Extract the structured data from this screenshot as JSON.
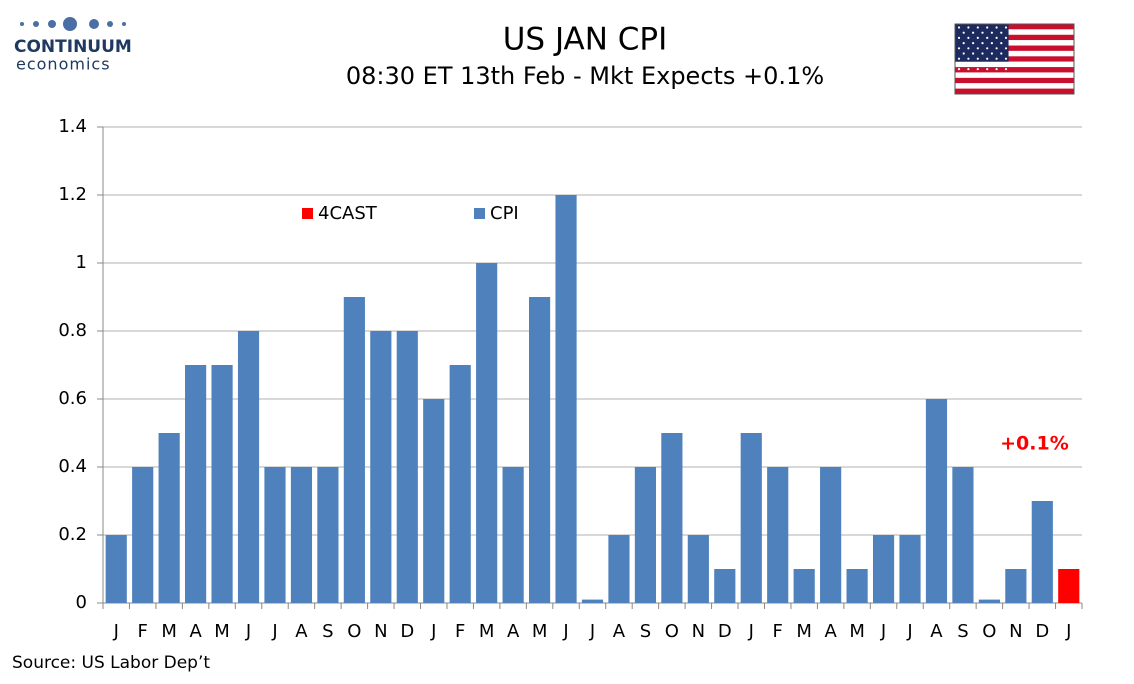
{
  "logo": {
    "name": "CONTINUUM",
    "tagline": "economics"
  },
  "chart_data": {
    "type": "bar",
    "title": "US JAN CPI",
    "subtitle": "08:30 ET 13th Feb - Mkt Expects +0.1%",
    "source": "Source: US Labor Dep’t",
    "categories": [
      "J",
      "F",
      "M",
      "A",
      "M",
      "J",
      "J",
      "A",
      "S",
      "O",
      "N",
      "D",
      "J",
      "F",
      "M",
      "A",
      "M",
      "J",
      "J",
      "A",
      "S",
      "O",
      "N",
      "D",
      "J",
      "F",
      "M",
      "A",
      "M",
      "J",
      "J",
      "A",
      "S",
      "O",
      "N",
      "D",
      "J"
    ],
    "series": [
      {
        "name": "4CAST",
        "color": "#ff0000",
        "values": [
          null,
          null,
          null,
          null,
          null,
          null,
          null,
          null,
          null,
          null,
          null,
          null,
          null,
          null,
          null,
          null,
          null,
          null,
          null,
          null,
          null,
          null,
          null,
          null,
          null,
          null,
          null,
          null,
          null,
          null,
          null,
          null,
          null,
          null,
          null,
          null,
          0.1
        ],
        "value_labels": [
          null,
          null,
          null,
          null,
          null,
          null,
          null,
          null,
          null,
          null,
          null,
          null,
          null,
          null,
          null,
          null,
          null,
          null,
          null,
          null,
          null,
          null,
          null,
          null,
          null,
          null,
          null,
          null,
          null,
          null,
          null,
          null,
          null,
          null,
          null,
          null,
          "+0.1%"
        ]
      },
      {
        "name": "CPI",
        "color": "#4f81bd",
        "values": [
          0.2,
          0.4,
          0.5,
          0.7,
          0.7,
          0.8,
          0.4,
          0.4,
          0.4,
          0.9,
          0.8,
          0.8,
          0.6,
          0.7,
          1.0,
          0.4,
          0.9,
          1.2,
          0.01,
          0.2,
          0.4,
          0.5,
          0.2,
          0.1,
          0.5,
          0.4,
          0.1,
          0.4,
          0.1,
          0.2,
          0.2,
          0.6,
          0.4,
          0.01,
          0.1,
          0.3,
          null
        ]
      }
    ],
    "ylim": [
      0,
      1.4
    ],
    "yticks": [
      0,
      0.2,
      0.4,
      0.6,
      0.8,
      1,
      1.2,
      1.4
    ],
    "grid": true
  }
}
